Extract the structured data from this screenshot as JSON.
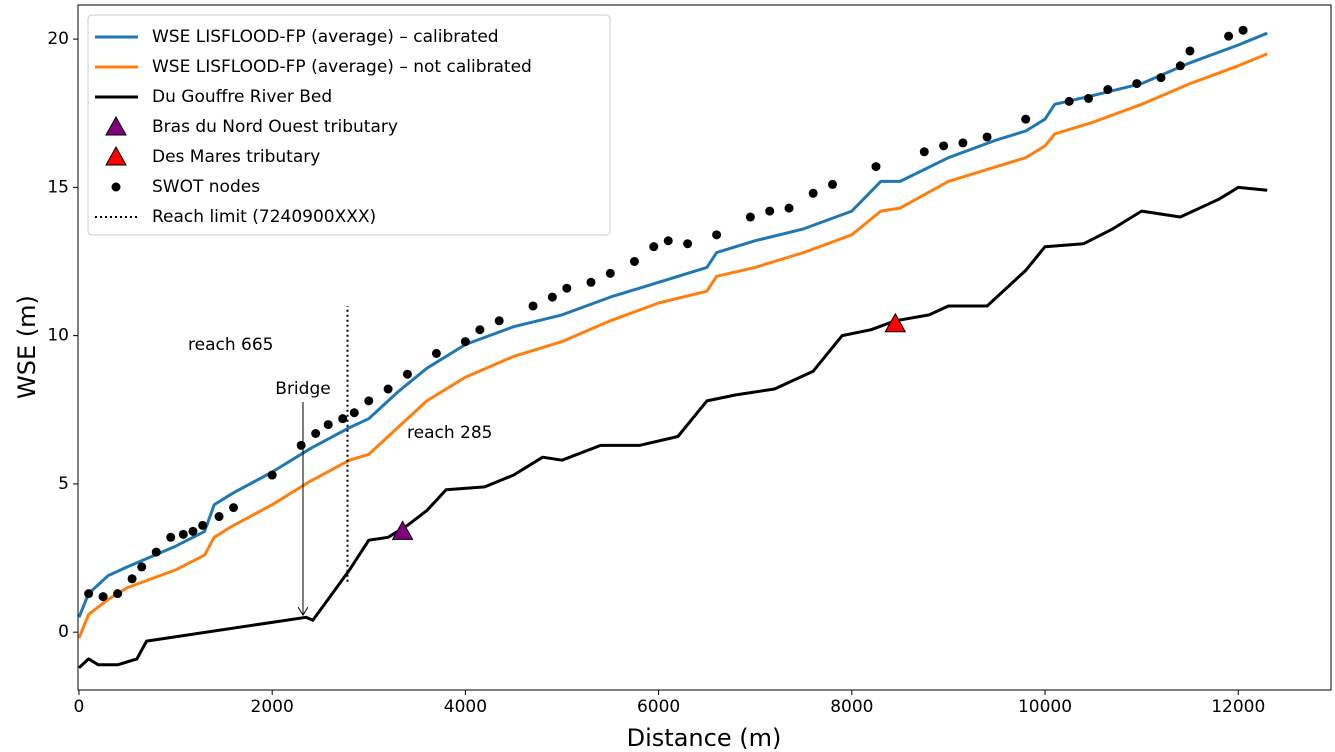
{
  "chart_data": {
    "type": "line",
    "xlabel": "Distance (m)",
    "ylabel": "WSE (m)",
    "xlim": [
      -10,
      12960
    ],
    "ylim": [
      -1.95,
      21.15
    ],
    "xticks": [
      0,
      2000,
      4000,
      6000,
      8000,
      10000,
      12000
    ],
    "yticks": [
      0,
      5,
      10,
      15,
      20
    ],
    "legend": "upper left",
    "annotations": [
      "reach 665",
      "Bridge",
      "reach 285"
    ],
    "series": [
      {
        "name": "WSE LISFLOOD-FP (average) – calibrated",
        "color": "#1f77b4",
        "style": "solid",
        "x": [
          0,
          100,
          300,
          500,
          1000,
          1300,
          1400,
          1600,
          2000,
          2400,
          2800,
          3000,
          3300,
          3600,
          4000,
          4500,
          5000,
          5500,
          6000,
          6500,
          6600,
          7000,
          7500,
          8000,
          8300,
          8500,
          9000,
          9500,
          9800,
          10000,
          10100,
          10500,
          11000,
          11500,
          12000,
          12300
        ],
        "values": [
          0.5,
          1.3,
          1.9,
          2.2,
          2.9,
          3.4,
          4.3,
          4.7,
          5.4,
          6.2,
          6.9,
          7.2,
          8.1,
          8.9,
          9.7,
          10.3,
          10.7,
          11.3,
          11.8,
          12.3,
          12.8,
          13.2,
          13.6,
          14.2,
          15.2,
          15.2,
          16.0,
          16.6,
          16.9,
          17.3,
          17.8,
          18.1,
          18.5,
          19.2,
          19.8,
          20.2
        ]
      },
      {
        "name": "WSE LISFLOOD-FP (average) – not calibrated",
        "color": "#ff7f0e",
        "style": "solid",
        "x": [
          0,
          100,
          300,
          500,
          1000,
          1300,
          1400,
          1600,
          2000,
          2400,
          2800,
          3000,
          3300,
          3600,
          4000,
          4500,
          5000,
          5500,
          6000,
          6500,
          6600,
          7000,
          7500,
          8000,
          8300,
          8500,
          9000,
          9500,
          9800,
          10000,
          10100,
          10500,
          11000,
          11500,
          12000,
          12300
        ],
        "values": [
          -0.2,
          0.6,
          1.1,
          1.5,
          2.1,
          2.6,
          3.2,
          3.6,
          4.3,
          5.1,
          5.8,
          6.0,
          6.9,
          7.8,
          8.6,
          9.3,
          9.8,
          10.5,
          11.1,
          11.5,
          12.0,
          12.3,
          12.8,
          13.4,
          14.2,
          14.3,
          15.2,
          15.7,
          16.0,
          16.4,
          16.8,
          17.2,
          17.8,
          18.5,
          19.1,
          19.5
        ]
      },
      {
        "name": "Du Gouffre River Bed",
        "color": "#000000",
        "style": "solid",
        "x": [
          0,
          100,
          200,
          400,
          600,
          700,
          2350,
          2420,
          2600,
          2800,
          3000,
          3200,
          3400,
          3600,
          3800,
          4200,
          4500,
          4800,
          5000,
          5400,
          5800,
          6200,
          6500,
          6800,
          7200,
          7600,
          7900,
          8200,
          8450,
          8800,
          9000,
          9400,
          9800,
          10000,
          10400,
          10700,
          11000,
          11400,
          11800,
          12000,
          12300
        ],
        "values": [
          -1.2,
          -0.9,
          -1.1,
          -1.1,
          -0.9,
          -0.3,
          0.5,
          0.4,
          1.2,
          2.1,
          3.1,
          3.2,
          3.6,
          4.1,
          4.8,
          4.9,
          5.3,
          5.9,
          5.8,
          6.3,
          6.3,
          6.6,
          7.8,
          8.0,
          8.2,
          8.8,
          10.0,
          10.2,
          10.5,
          10.7,
          11.0,
          11.0,
          12.2,
          13.0,
          13.1,
          13.6,
          14.2,
          14.0,
          14.6,
          15.0,
          14.9
        ]
      },
      {
        "name": "Bras du Nord Ouest tributary",
        "color": "#800080",
        "style": "triangle",
        "x": [
          3350
        ],
        "values": [
          3.4
        ]
      },
      {
        "name": "Des Mares tributary",
        "color": "#ff0000",
        "style": "triangle",
        "x": [
          8450
        ],
        "values": [
          10.4
        ]
      },
      {
        "name": "SWOT nodes",
        "color": "#000000",
        "style": "dot",
        "x": [
          100,
          250,
          400,
          550,
          650,
          800,
          950,
          1080,
          1180,
          1280,
          1450,
          1600,
          2000,
          2300,
          2450,
          2580,
          2730,
          2850,
          3000,
          3200,
          3400,
          3700,
          4000,
          4150,
          4350,
          4700,
          4900,
          5050,
          5300,
          5500,
          5750,
          5950,
          6100,
          6300,
          6600,
          6950,
          7150,
          7350,
          7600,
          7800,
          8250,
          8750,
          8950,
          9150,
          9400,
          9800,
          10250,
          10450,
          10650,
          10950,
          11200,
          11400,
          11500,
          11900,
          12050
        ],
        "values": [
          1.3,
          1.2,
          1.3,
          1.8,
          2.2,
          2.7,
          3.2,
          3.3,
          3.4,
          3.6,
          3.9,
          4.2,
          5.3,
          6.3,
          6.7,
          7.0,
          7.2,
          7.4,
          7.8,
          8.2,
          8.7,
          9.4,
          9.8,
          10.2,
          10.5,
          11.0,
          11.3,
          11.6,
          11.8,
          12.1,
          12.5,
          13.0,
          13.2,
          13.1,
          13.4,
          14.0,
          14.2,
          14.3,
          14.8,
          15.1,
          15.7,
          16.2,
          16.4,
          16.5,
          16.7,
          17.3,
          17.9,
          18.0,
          18.3,
          18.5,
          18.7,
          19.1,
          19.6,
          20.1,
          20.3
        ]
      },
      {
        "name": "Reach limit (7240900XXX)",
        "color": "#000000",
        "style": "dotted",
        "x": [
          2780,
          2780
        ],
        "values": [
          1.7,
          11.0
        ]
      }
    ]
  }
}
